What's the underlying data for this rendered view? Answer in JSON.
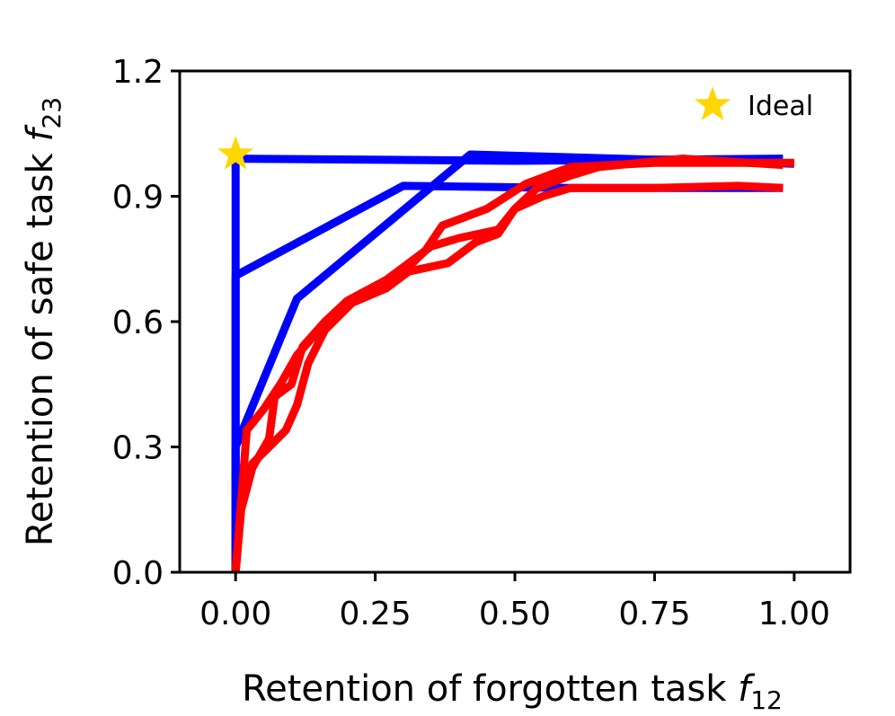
{
  "chart_data": {
    "type": "line",
    "xlabel": "Retention of forgotten task f12",
    "ylabel": "Retention of safe task f23",
    "xlabel_main": "Retention of forgotten task ",
    "xlabel_var": "f",
    "xlabel_sub": "12",
    "ylabel_main": "Retention of safe task ",
    "ylabel_var": "f",
    "ylabel_sub": "23",
    "xlim": [
      -0.1,
      1.1
    ],
    "ylim": [
      0.0,
      1.2
    ],
    "xticks": [
      0.0,
      0.25,
      0.5,
      0.75,
      1.0
    ],
    "xtick_labels": [
      "0.00",
      "0.25",
      "0.50",
      "0.75",
      "1.00"
    ],
    "yticks": [
      0.0,
      0.3,
      0.6,
      0.9,
      1.2
    ],
    "ytick_labels": [
      "0.0",
      "0.3",
      "0.6",
      "0.9",
      "1.2"
    ],
    "grid": false,
    "legend_position": "top-right",
    "ideal_point": {
      "label": "Ideal",
      "x": 0.0,
      "y": 1.0,
      "color": "#FFD700",
      "marker": "star"
    },
    "series": [
      {
        "color": "#0000FF",
        "points": [
          [
            0.0,
            0.0
          ],
          [
            0.0,
            0.99
          ],
          [
            0.5,
            0.985
          ],
          [
            0.98,
            0.99
          ]
        ]
      },
      {
        "color": "#0000FF",
        "points": [
          [
            0.0,
            0.0
          ],
          [
            0.0,
            0.71
          ],
          [
            0.3,
            0.925
          ],
          [
            0.6,
            0.92
          ],
          [
            0.98,
            0.92
          ]
        ]
      },
      {
        "color": "#0000FF",
        "points": [
          [
            0.0,
            0.0
          ],
          [
            0.0,
            0.3
          ],
          [
            0.11,
            0.655
          ],
          [
            0.42,
            1.0
          ],
          [
            1.0,
            0.978
          ]
        ]
      },
      {
        "color": "#FF0000",
        "points": [
          [
            0.0,
            0.0
          ],
          [
            0.01,
            0.15
          ],
          [
            0.03,
            0.25
          ],
          [
            0.06,
            0.32
          ],
          [
            0.07,
            0.42
          ],
          [
            0.1,
            0.45
          ],
          [
            0.12,
            0.54
          ],
          [
            0.16,
            0.6
          ],
          [
            0.2,
            0.65
          ],
          [
            0.27,
            0.7
          ],
          [
            0.35,
            0.78
          ],
          [
            0.4,
            0.8
          ],
          [
            0.47,
            0.82
          ],
          [
            0.5,
            0.87
          ],
          [
            0.55,
            0.9
          ],
          [
            0.6,
            0.92
          ],
          [
            0.75,
            0.92
          ],
          [
            0.9,
            0.925
          ],
          [
            0.98,
            0.92
          ]
        ]
      },
      {
        "color": "#FF0000",
        "points": [
          [
            0.0,
            0.0
          ],
          [
            0.02,
            0.34
          ],
          [
            0.05,
            0.39
          ],
          [
            0.08,
            0.45
          ],
          [
            0.11,
            0.52
          ],
          [
            0.15,
            0.58
          ],
          [
            0.2,
            0.64
          ],
          [
            0.27,
            0.68
          ],
          [
            0.34,
            0.77
          ],
          [
            0.37,
            0.83
          ],
          [
            0.45,
            0.87
          ],
          [
            0.52,
            0.93
          ],
          [
            0.6,
            0.97
          ],
          [
            0.75,
            0.98
          ],
          [
            1.0,
            0.98
          ]
        ]
      },
      {
        "color": "#FF0000",
        "points": [
          [
            0.0,
            0.0
          ],
          [
            0.01,
            0.17
          ],
          [
            0.03,
            0.26
          ],
          [
            0.06,
            0.3
          ],
          [
            0.09,
            0.34
          ],
          [
            0.11,
            0.4
          ],
          [
            0.13,
            0.5
          ],
          [
            0.16,
            0.58
          ],
          [
            0.22,
            0.66
          ],
          [
            0.27,
            0.68
          ],
          [
            0.31,
            0.72
          ],
          [
            0.38,
            0.74
          ],
          [
            0.43,
            0.79
          ],
          [
            0.47,
            0.81
          ],
          [
            0.5,
            0.87
          ],
          [
            0.54,
            0.92
          ],
          [
            0.6,
            0.95
          ],
          [
            0.65,
            0.97
          ],
          [
            0.8,
            0.99
          ],
          [
            0.98,
            0.975
          ]
        ]
      }
    ]
  }
}
